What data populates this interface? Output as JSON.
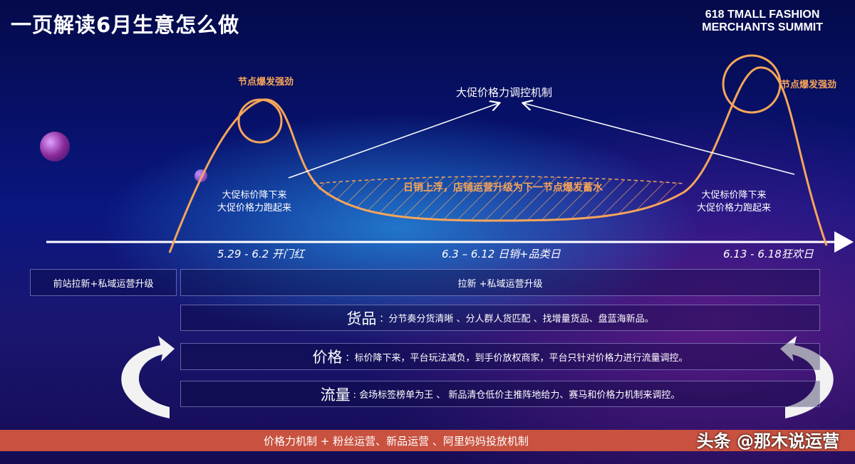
{
  "title": "一页解读6月生意怎么做",
  "brand": {
    "line1": "618 TMALL FASHION",
    "line2": "MERCHANTS SUMMIT"
  },
  "diagram": {
    "peak_left_label": "节点爆发强劲",
    "peak_right_label": "节点爆发强劲",
    "mechanism_label": "大促价格力调控机制",
    "trough_label": "日销上浮，店铺运营升级为下一节点爆发蓄水",
    "left_note": {
      "line1": "大促标价降下来",
      "line2": "大促价格力跑起来"
    },
    "right_note": {
      "line1": "大促标价降下来",
      "line2": "大促价格力跑起来"
    },
    "phases": [
      "5.29 - 6.2  开门红",
      "6.3 – 6.12 日销+品类日",
      "6.13 - 6.18狂欢日"
    ]
  },
  "rows": {
    "pre": "前站拉新+私域运营升级",
    "main": "拉新 +私域运营升级",
    "goods": {
      "head": "货品",
      "text": "：分节奏分货清晰 、分人群人货匹配 、找增量货品、盘蓝海新品。"
    },
    "price": {
      "head": "价格",
      "text": "：标价降下来，平台玩法减负，到手价放权商家，平台只针对价格力进行流量调控。"
    },
    "traffic": {
      "head": "流量",
      "text": ": 会场标签榜单为王 、 新品清仓低价主推阵地给力、赛马和价格力机制来调控。"
    }
  },
  "bottom_bar": "价格力机制  +  粉丝运营、新品运营 、阿里妈妈投放机制",
  "watermark": "头条 @那木说运营",
  "colors": {
    "accent": "#f6a559",
    "bar": "#c8513f"
  }
}
